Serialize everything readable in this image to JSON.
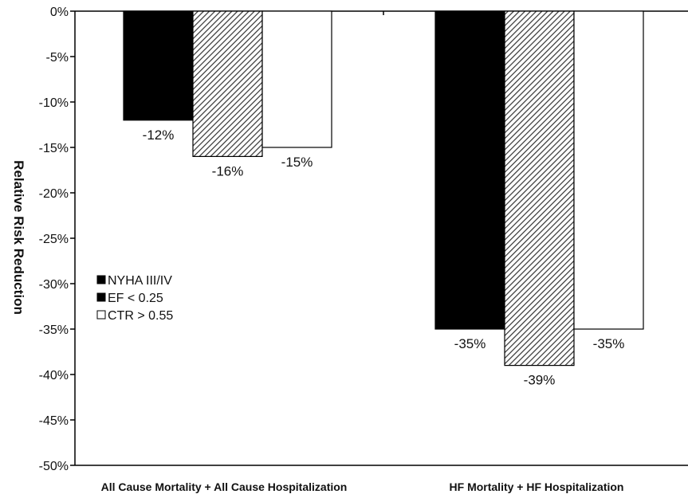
{
  "chart_data": {
    "type": "bar",
    "ylabel": "Relative Risk Reduction",
    "xlabel": "",
    "ylim": [
      -50,
      0
    ],
    "yticks": [
      0,
      -5,
      -10,
      -15,
      -20,
      -25,
      -30,
      -35,
      -40,
      -45,
      -50
    ],
    "ytick_labels": [
      "0%",
      "-5%",
      "-10%",
      "-15%",
      "-20%",
      "-25%",
      "-30%",
      "-35%",
      "-40%",
      "-45%",
      "-50%"
    ],
    "categories": [
      "All Cause Mortality + All Cause Hospitalization",
      "HF Mortality + HF Hospitalization"
    ],
    "series": [
      {
        "name": "NYHA III/IV",
        "values": [
          -12,
          -35
        ],
        "labels": [
          "-12%",
          "-35%"
        ],
        "fill": "solid-black"
      },
      {
        "name": "EF < 0.25",
        "values": [
          -16,
          -39
        ],
        "labels": [
          "-16%",
          "-39%"
        ],
        "fill": "diagonal-hatch"
      },
      {
        "name": "CTR > 0.55",
        "values": [
          -15,
          -35
        ],
        "labels": [
          "-15%",
          "-35%"
        ],
        "fill": "white"
      }
    ],
    "legend_position": "middle-left",
    "grid": false,
    "colors": {
      "black": "#000000",
      "hatch": "#555555",
      "white": "#ffffff",
      "axis": "#000000"
    }
  }
}
